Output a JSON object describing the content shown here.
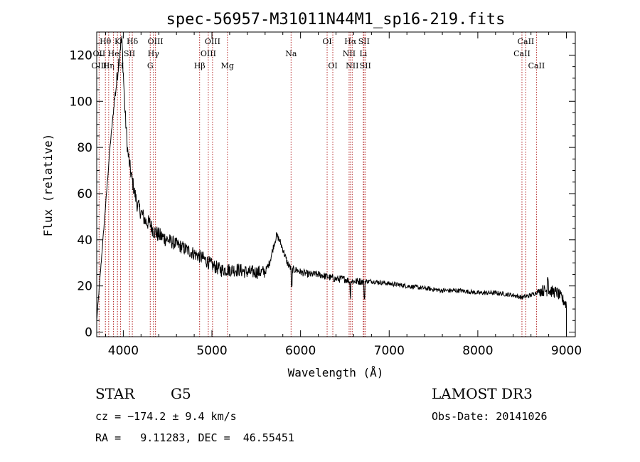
{
  "chart_data": {
    "type": "line",
    "title": "spec-56957-M31011N44M1_sp16-219.fits",
    "xlabel": "Wavelength (Å)",
    "ylabel": "Flux (relative)",
    "xlim": [
      3700,
      9100
    ],
    "ylim": [
      -2,
      130
    ],
    "x_ticks": [
      4000,
      5000,
      6000,
      7000,
      8000,
      9000
    ],
    "y_ticks": [
      0,
      20,
      40,
      60,
      80,
      100,
      120
    ],
    "x_tick_labels": [
      "4000",
      "5000",
      "6000",
      "7000",
      "8000",
      "9000"
    ],
    "y_tick_labels": [
      "0",
      "20",
      "40",
      "60",
      "80",
      "100",
      "120"
    ],
    "grid": false,
    "series": [
      {
        "name": "flux",
        "color": "#000000",
        "x": [
          3700,
          3750,
          3800,
          3850,
          3900,
          3930,
          3950,
          3970,
          3985,
          4000,
          4020,
          4050,
          4080,
          4100,
          4130,
          4160,
          4200,
          4250,
          4300,
          4340,
          4400,
          4450,
          4500,
          4600,
          4700,
          4800,
          4900,
          5000,
          5100,
          5200,
          5300,
          5400,
          5500,
          5600,
          5650,
          5700,
          5730,
          5760,
          5800,
          5850,
          5900,
          5950,
          6000,
          6100,
          6200,
          6300,
          6400,
          6500,
          6560,
          6600,
          6700,
          6800,
          7000,
          7200,
          7400,
          7600,
          7800,
          8000,
          8200,
          8400,
          8500,
          8600,
          8700,
          8800,
          8900,
          9000
        ],
        "y": [
          5,
          30,
          55,
          80,
          100,
          110,
          118,
          125,
          126,
          112,
          95,
          78,
          70,
          66,
          60,
          55,
          52,
          48,
          47,
          44,
          42,
          41,
          40,
          38,
          36,
          34,
          32,
          29,
          27,
          27,
          27,
          26,
          26,
          26,
          30,
          38,
          42,
          40,
          36,
          30,
          27,
          27,
          26,
          25,
          25,
          24,
          23,
          23,
          22,
          22,
          22,
          22,
          21,
          20,
          19,
          18,
          18,
          17,
          17,
          16,
          15,
          16,
          18,
          18,
          17,
          12
        ]
      }
    ],
    "line_markers": [
      {
        "label": "Hθ",
        "wavelength": 3798,
        "row": 1
      },
      {
        "label": "OII",
        "wavelength": 3727,
        "row": 2
      },
      {
        "label": "OIII",
        "wavelength": 3727,
        "row": 3
      },
      {
        "label": "Hη",
        "wavelength": 3835,
        "row": 3
      },
      {
        "label": "He",
        "wavelength": 3889,
        "row": 2
      },
      {
        "label": "K",
        "wavelength": 3934,
        "row": 1
      },
      {
        "label": "H",
        "wavelength": 3968,
        "row": 3
      },
      {
        "label": "Hδ",
        "wavelength": 4102,
        "row": 1
      },
      {
        "label": "SII",
        "wavelength": 4070,
        "row": 2
      },
      {
        "label": "OIII",
        "wavelength": 4363,
        "row": 1
      },
      {
        "label": "Hγ",
        "wavelength": 4340,
        "row": 2
      },
      {
        "label": "G",
        "wavelength": 4304,
        "row": 3
      },
      {
        "label": "Hβ",
        "wavelength": 4861,
        "row": 3
      },
      {
        "label": "OIII",
        "wavelength": 5007,
        "row": 1
      },
      {
        "label": "OIII",
        "wavelength": 4959,
        "row": 2
      },
      {
        "label": "Mg",
        "wavelength": 5175,
        "row": 3
      },
      {
        "label": "Na",
        "wavelength": 5893,
        "row": 2
      },
      {
        "label": "OI",
        "wavelength": 6300,
        "row": 1
      },
      {
        "label": "OI",
        "wavelength": 6364,
        "row": 3
      },
      {
        "label": "Hα",
        "wavelength": 6563,
        "row": 1
      },
      {
        "label": "NII",
        "wavelength": 6548,
        "row": 2
      },
      {
        "label": "NII",
        "wavelength": 6583,
        "row": 3
      },
      {
        "label": "SII",
        "wavelength": 6716,
        "row": 1
      },
      {
        "label": "Li",
        "wavelength": 6708,
        "row": 2
      },
      {
        "label": "SII",
        "wavelength": 6731,
        "row": 3
      },
      {
        "label": "CaII",
        "wavelength": 8542,
        "row": 1
      },
      {
        "label": "CaII",
        "wavelength": 8498,
        "row": 2
      },
      {
        "label": "CaII",
        "wavelength": 8662,
        "row": 3
      }
    ]
  },
  "info": {
    "object_class": "STAR",
    "subclass": "G5",
    "survey": "LAMOST DR3",
    "redshift": "cz = −174.2 ± 9.4 km/s",
    "obs_date": "Obs-Date: 20141026",
    "coords": "RA =   9.11283, DEC =  46.55451"
  }
}
